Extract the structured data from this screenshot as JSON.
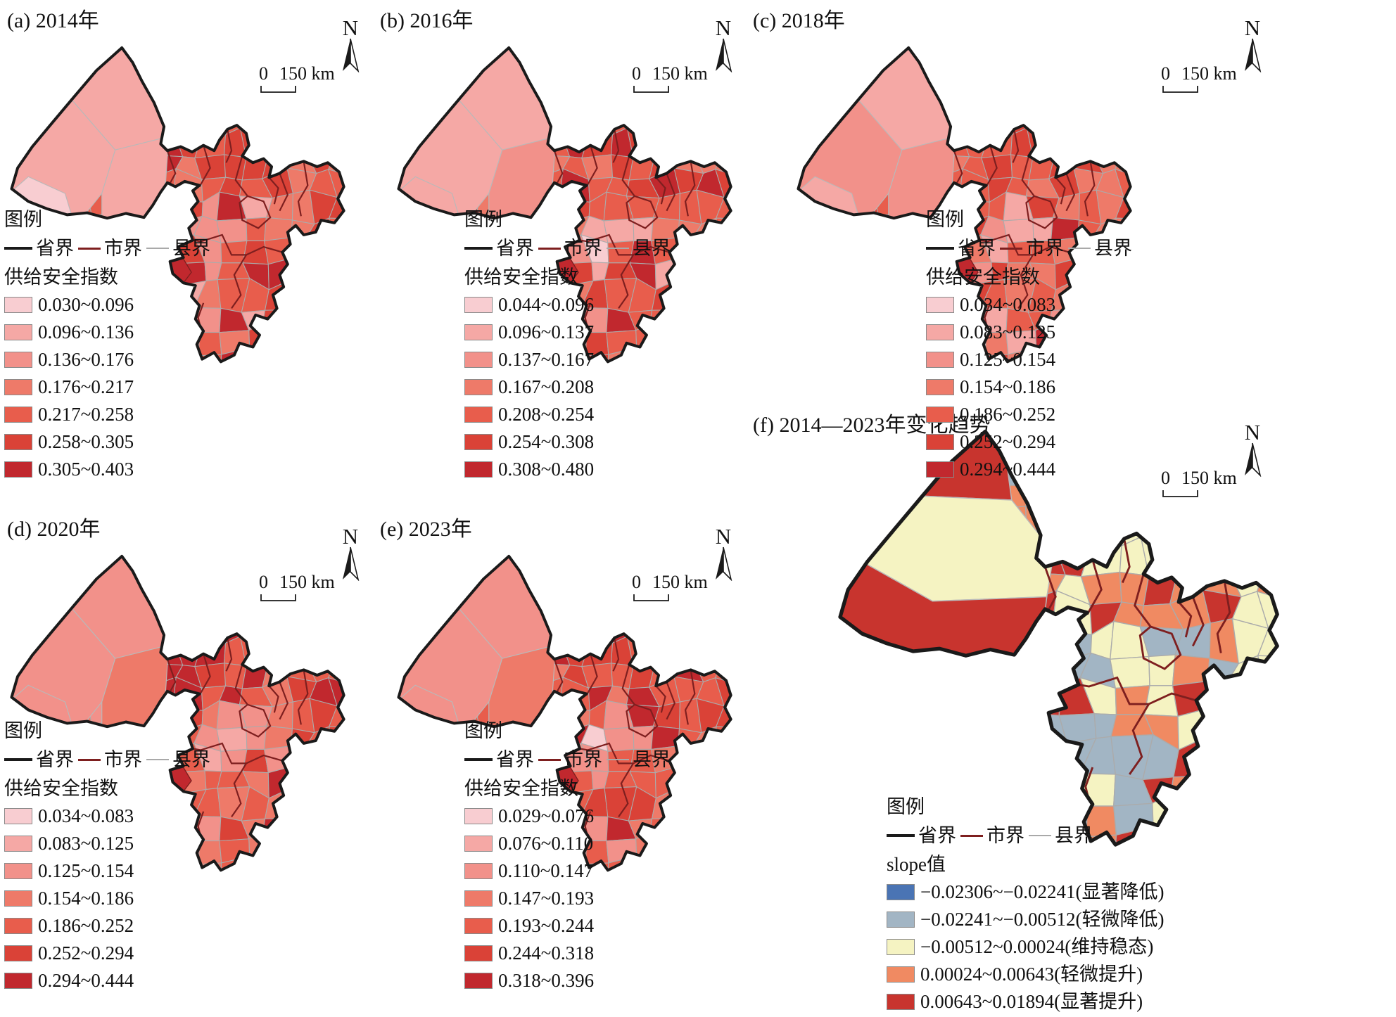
{
  "figure": {
    "north_label": "N",
    "scale": {
      "zero": "0",
      "distance": "150 km"
    },
    "boundary_colors": {
      "province": "#1a1a1a",
      "city": "#7e1f1f",
      "county": "#a9a9a9"
    },
    "panels": [
      {
        "id": "a",
        "title": "(a) 2014年",
        "legend_title": "图例",
        "boundaries": {
          "province": "省界",
          "city": "市界",
          "county": "县界"
        },
        "index_title": "供给安全指数",
        "classes": [
          {
            "label": "0.030~0.096",
            "color": "#f8cdd1"
          },
          {
            "label": "0.096~0.136",
            "color": "#f5a8a5"
          },
          {
            "label": "0.136~0.176",
            "color": "#f2918a"
          },
          {
            "label": "0.176~0.217",
            "color": "#ee7a69"
          },
          {
            "label": "0.217~0.258",
            "color": "#e85d4c"
          },
          {
            "label": "0.258~0.305",
            "color": "#da4237"
          },
          {
            "label": "0.305~0.403",
            "color": "#c1282e"
          }
        ]
      },
      {
        "id": "b",
        "title": "(b) 2016年",
        "legend_title": "图例",
        "boundaries": {
          "province": "省界",
          "city": "市界",
          "county": "县界"
        },
        "index_title": "供给安全指数",
        "classes": [
          {
            "label": "0.044~0.096",
            "color": "#f8cdd1"
          },
          {
            "label": "0.096~0.137",
            "color": "#f5a8a5"
          },
          {
            "label": "0.137~0.167",
            "color": "#f2918a"
          },
          {
            "label": "0.167~0.208",
            "color": "#ee7a69"
          },
          {
            "label": "0.208~0.254",
            "color": "#e85d4c"
          },
          {
            "label": "0.254~0.308",
            "color": "#da4237"
          },
          {
            "label": "0.308~0.480",
            "color": "#c1282e"
          }
        ]
      },
      {
        "id": "c",
        "title": "(c) 2018年",
        "legend_title": "图例",
        "boundaries": {
          "province": "省界",
          "city": "市界",
          "county": "县界"
        },
        "index_title": "供给安全指数",
        "classes": [
          {
            "label": "0.034~0.083",
            "color": "#f8cdd1"
          },
          {
            "label": "0.083~0.125",
            "color": "#f5a8a5"
          },
          {
            "label": "0.125~0.154",
            "color": "#f2918a"
          },
          {
            "label": "0.154~0.186",
            "color": "#ee7a69"
          },
          {
            "label": "0.186~0.252",
            "color": "#e85d4c"
          },
          {
            "label": "0.252~0.294",
            "color": "#da4237"
          },
          {
            "label": "0.294~0.444",
            "color": "#c1282e"
          }
        ]
      },
      {
        "id": "d",
        "title": "(d) 2020年",
        "legend_title": "图例",
        "boundaries": {
          "province": "省界",
          "city": "市界",
          "county": "县界"
        },
        "index_title": "供给安全指数",
        "classes": [
          {
            "label": "0.034~0.083",
            "color": "#f8cdd1"
          },
          {
            "label": "0.083~0.125",
            "color": "#f5a8a5"
          },
          {
            "label": "0.125~0.154",
            "color": "#f2918a"
          },
          {
            "label": "0.154~0.186",
            "color": "#ee7a69"
          },
          {
            "label": "0.186~0.252",
            "color": "#e85d4c"
          },
          {
            "label": "0.252~0.294",
            "color": "#da4237"
          },
          {
            "label": "0.294~0.444",
            "color": "#c1282e"
          }
        ]
      },
      {
        "id": "e",
        "title": "(e) 2023年",
        "legend_title": "图例",
        "boundaries": {
          "province": "省界",
          "city": "市界",
          "county": "县界"
        },
        "index_title": "供给安全指数",
        "classes": [
          {
            "label": "0.029~0.076",
            "color": "#f8cdd1"
          },
          {
            "label": "0.076~0.110",
            "color": "#f5a8a5"
          },
          {
            "label": "0.110~0.147",
            "color": "#f2918a"
          },
          {
            "label": "0.147~0.193",
            "color": "#ee7a69"
          },
          {
            "label": "0.193~0.244",
            "color": "#e85d4c"
          },
          {
            "label": "0.244~0.318",
            "color": "#da4237"
          },
          {
            "label": "0.318~0.396",
            "color": "#c1282e"
          }
        ]
      },
      {
        "id": "f",
        "title": "(f) 2014—2023年变化趋势",
        "legend_title": "图例",
        "boundaries": {
          "province": "省界",
          "city": "市界",
          "county": "县界"
        },
        "index_title": "slope值",
        "classes": [
          {
            "label": "−0.02306~−0.02241(显著降低)",
            "color": "#4a74b4"
          },
          {
            "label": "−0.02241~−0.00512(轻微降低)",
            "color": "#a2b5c4"
          },
          {
            "label": "−0.00512~0.00024(维持稳态)",
            "color": "#f5f3c2"
          },
          {
            "label": "0.00024~0.00643(轻微提升)",
            "color": "#f08a62"
          },
          {
            "label": "0.00643~0.01894(显著提升)",
            "color": "#c8342e"
          }
        ]
      }
    ]
  }
}
